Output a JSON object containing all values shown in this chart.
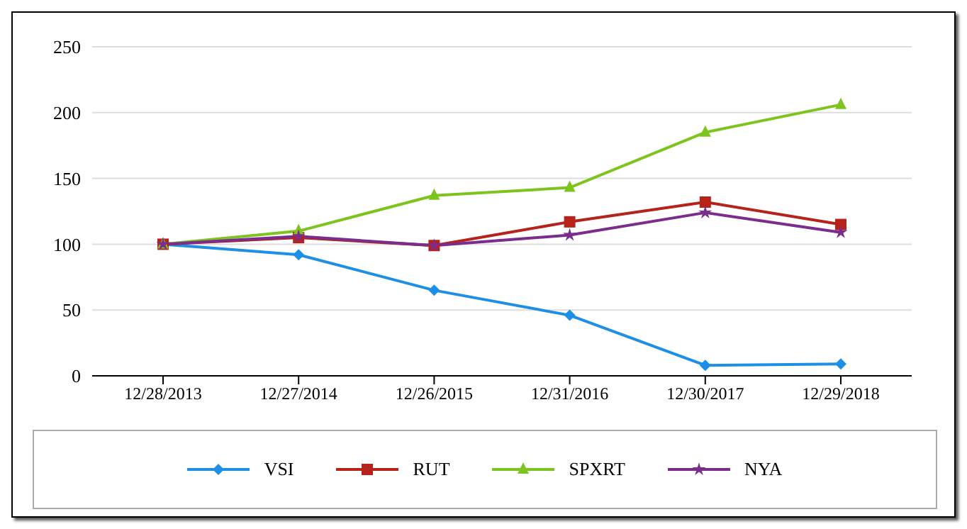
{
  "chart_data": {
    "type": "line",
    "categories": [
      "12/28/2013",
      "12/27/2014",
      "12/26/2015",
      "12/31/2016",
      "12/30/2017",
      "12/29/2018"
    ],
    "series": [
      {
        "name": "VSI",
        "color": "#1e8fe6",
        "marker": "diamond",
        "values": [
          100,
          92,
          65,
          46,
          8,
          9
        ]
      },
      {
        "name": "RUT",
        "color": "#b5231b",
        "marker": "square",
        "values": [
          100,
          105,
          99,
          117,
          132,
          115
        ]
      },
      {
        "name": "SPXRT",
        "color": "#7ec41e",
        "marker": "triangle",
        "values": [
          100,
          110,
          137,
          143,
          185,
          206
        ]
      },
      {
        "name": "NYA",
        "color": "#7b2d8e",
        "marker": "star",
        "values": [
          100,
          106,
          99,
          107,
          124,
          109
        ]
      }
    ],
    "ylim": [
      0,
      250
    ],
    "yticks": [
      0,
      50,
      100,
      150,
      200,
      250
    ],
    "grid": "y",
    "legend": "bottom",
    "line_style": "solid"
  }
}
